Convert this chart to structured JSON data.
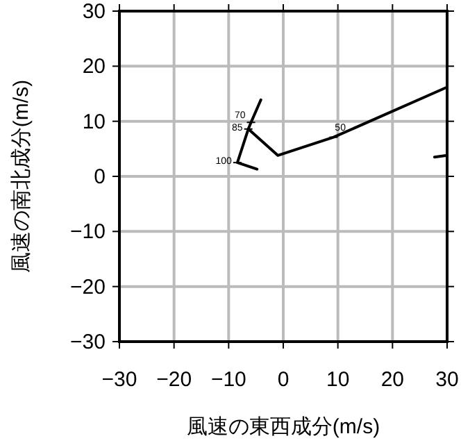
{
  "chart_data": {
    "type": "line",
    "xlabel": "風速の東西成分(m/s)",
    "ylabel": "風速の南北成分(m/s)",
    "xlim": [
      -30,
      30
    ],
    "ylim": [
      -30,
      30
    ],
    "xticks": [
      -30,
      -20,
      -10,
      0,
      10,
      20,
      30
    ],
    "yticks": [
      -30,
      -20,
      -10,
      0,
      10,
      20,
      30
    ],
    "grid": true,
    "line_style": "solid",
    "series": [
      {
        "color": "#000000",
        "x": [
          -4.8,
          -8.4,
          -6.4,
          -5.9,
          -4.1,
          null,
          -6.4,
          -1.0,
          9.2,
          30,
          null,
          27.7,
          30
        ],
        "values": [
          1.3,
          2.5,
          8.6,
          9.8,
          13.9,
          null,
          8.6,
          3.8,
          7.1,
          16.2,
          null,
          3.5,
          3.8
        ]
      }
    ],
    "annotations": [
      {
        "text": "100",
        "x": -8.4,
        "y": 2.5
      },
      {
        "text": "85",
        "x": -6.4,
        "y": 8.6
      },
      {
        "text": "70",
        "x": -5.9,
        "y": 9.8
      },
      {
        "text": "50",
        "x": 9.2,
        "y": 7.1
      }
    ]
  }
}
